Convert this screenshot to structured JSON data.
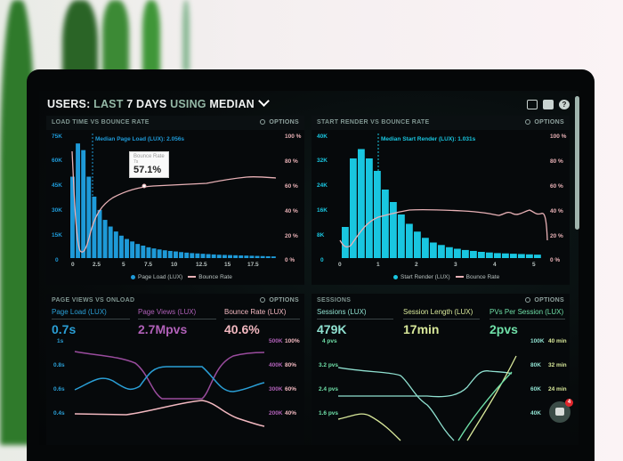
{
  "header": {
    "title_parts": [
      "USERS:",
      " LAST ",
      "7 DAYS",
      " USING ",
      "MEDIAN"
    ],
    "icons": [
      "monitor-icon",
      "share-icon",
      "help-icon"
    ]
  },
  "panels": {
    "load_time": {
      "title": "LOAD TIME VS BOUNCE RATE",
      "options_label": "OPTIONS",
      "median_label": "Median Page Load (LUX): 2.056s",
      "tooltip": {
        "title": "Bounce Rate",
        "sub": "7s",
        "value": "57.1%"
      },
      "legend": [
        "Page Load (LUX)",
        "Bounce Rate"
      ]
    },
    "start_render": {
      "title": "START RENDER VS BOUNCE RATE",
      "options_label": "OPTIONS",
      "median_label": "Median Start Render (LUX): 1.031s",
      "legend": [
        "Start Render (LUX)",
        "Bounce Rate"
      ]
    },
    "page_views": {
      "title": "PAGE VIEWS VS ONLOAD",
      "options_label": "OPTIONS",
      "stats": [
        {
          "label": "Page Load (LUX)",
          "value": "0.7s",
          "color": "#2a9fd6"
        },
        {
          "label": "Page Views (LUX)",
          "value": "2.7Mpvs",
          "color": "#b060b8"
        },
        {
          "label": "Bounce Rate (LUX)",
          "value": "40.6%",
          "color": "#f2b8c0"
        }
      ],
      "y_left": [
        "1s",
        "0.8s",
        "0.6s",
        "0.4s"
      ],
      "y_right_mid": [
        "500K",
        "400K",
        "300K",
        "200K"
      ],
      "y_right": [
        "100%",
        "80%",
        "60%",
        "40%"
      ]
    },
    "sessions": {
      "title": "SESSIONS",
      "options_label": "OPTIONS",
      "stats": [
        {
          "label": "Sessions (LUX)",
          "value": "479K",
          "color": "#8fe0d0"
        },
        {
          "label": "Session Length (LUX)",
          "value": "17min",
          "color": "#d8e89a"
        },
        {
          "label": "PVs Per Session (LUX)",
          "value": "2pvs",
          "color": "#6fe0a8"
        }
      ],
      "y_left": [
        "4 pvs",
        "3.2 pvs",
        "2.4 pvs",
        "1.6 pvs"
      ],
      "y_right_mid": [
        "100K",
        "80K",
        "60K",
        "40K"
      ],
      "y_right": [
        "40 min",
        "32 min",
        "24 min"
      ]
    }
  },
  "chat_widget": {
    "badge": "4"
  },
  "chart_data": [
    {
      "type": "bar",
      "title": "LOAD TIME VS BOUNCE RATE",
      "xlabel": "",
      "ylabel": "",
      "x_ticks": [
        "0",
        "2.5",
        "5",
        "7.5",
        "10",
        "12.5",
        "15",
        "17.5"
      ],
      "y_left_ticks": [
        "0",
        "15K",
        "30K",
        "45K",
        "60K",
        "75K"
      ],
      "y_right_ticks": [
        "0 %",
        "20 %",
        "40 %",
        "60 %",
        "80 %",
        "100 %"
      ],
      "ylim": [
        0,
        75000
      ],
      "series": [
        {
          "name": "Page Load (LUX)",
          "type": "bar",
          "color": "#1e9ad8",
          "values": [
            49000,
            69000,
            65000,
            49000,
            37000,
            29000,
            23000,
            19000,
            16000,
            13500,
            11500,
            10000,
            8500,
            7500,
            6500,
            5800,
            5200,
            4700,
            4300,
            4000,
            3600,
            3300,
            3000,
            2800,
            2600,
            2400,
            2200,
            2000,
            1900,
            1800,
            1700,
            1600,
            1500,
            1400,
            1300,
            1200,
            1100,
            1000
          ]
        },
        {
          "name": "Bounce Rate",
          "type": "line",
          "color": "#e8b1b6",
          "x": [
            0,
            0.5,
            1,
            2,
            3,
            5,
            7,
            9,
            10,
            12,
            14,
            15,
            16,
            17,
            18,
            19
          ],
          "values": [
            97,
            30,
            12,
            25,
            38,
            50,
            57,
            58,
            56,
            59,
            63,
            67,
            66,
            62,
            65,
            65
          ]
        }
      ],
      "annotations": [
        "Median Page Load (LUX): 2.056s",
        "Bounce Rate 7s 57.1%"
      ],
      "legend_position": "bottom"
    },
    {
      "type": "bar",
      "title": "START RENDER VS BOUNCE RATE",
      "x_ticks": [
        "0",
        "1",
        "2",
        "3",
        "4",
        "5"
      ],
      "y_left_ticks": [
        "0",
        "8K",
        "16K",
        "24K",
        "32K",
        "40K"
      ],
      "y_right_ticks": [
        "0 %",
        "20 %",
        "40 %",
        "60 %",
        "80 %",
        "100 %"
      ],
      "ylim": [
        0,
        40000
      ],
      "series": [
        {
          "name": "Start Render (LUX)",
          "type": "bar",
          "color": "#19c6e0",
          "values": [
            10000,
            32000,
            35000,
            32000,
            28000,
            22000,
            18000,
            14000,
            11000,
            8500,
            6500,
            5000,
            4200,
            3500,
            3000,
            2600,
            2300,
            2000,
            1800,
            1600,
            1500,
            1400,
            1300,
            1200,
            1100
          ]
        },
        {
          "name": "Bounce Rate",
          "type": "line",
          "color": "#e8b1b6",
          "x": [
            0,
            0.2,
            0.6,
            1,
            1.5,
            2,
            3,
            3.5,
            4,
            4.5,
            5,
            5.1
          ],
          "values": [
            18,
            14,
            24,
            33,
            37,
            40,
            38,
            35,
            38,
            37,
            36,
            10
          ]
        }
      ],
      "annotations": [
        "Median Start Render (LUX): 1.031s"
      ],
      "legend_position": "bottom"
    },
    {
      "type": "line",
      "title": "PAGE VIEWS VS ONLOAD",
      "y_left_ticks": [
        "0.4s",
        "0.6s",
        "0.8s",
        "1s"
      ],
      "y_right_ticks": [
        "200K 40%",
        "300K 60%",
        "400K 80%",
        "500K 100%"
      ],
      "series": [
        {
          "name": "Page Load (LUX)",
          "color": "#2a9fd6",
          "values": [
            0.6,
            0.7,
            0.6,
            0.8,
            0.8,
            0.6,
            0.7
          ]
        },
        {
          "name": "Page Views (LUX)",
          "color": "#b060b8",
          "values": [
            460000,
            430000,
            400000,
            260000,
            260000,
            430000,
            450000
          ]
        },
        {
          "name": "Bounce Rate (LUX)",
          "color": "#f2b8c0",
          "values": [
            40,
            40,
            42,
            48,
            52,
            42,
            36
          ]
        }
      ]
    },
    {
      "type": "line",
      "title": "SESSIONS",
      "y_left_ticks": [
        "1.6 pvs",
        "2.4 pvs",
        "3.2 pvs",
        "4 pvs"
      ],
      "y_right_ticks": [
        "40K",
        "60K",
        "80K",
        "100K",
        "24 min",
        "32 min",
        "40 min"
      ],
      "series": [
        {
          "name": "Sessions (LUX)",
          "color": "#8fe0d0",
          "values": [
            3.2,
            3.1,
            3.0,
            2.2,
            1.2,
            2.4,
            3.0
          ]
        },
        {
          "name": "Session Length (LUX)",
          "color": "#d8e89a",
          "values": [
            1.8,
            1.9,
            1.6,
            1.0,
            0.8,
            1.5,
            3.8
          ]
        },
        {
          "name": "PVs Per Session (LUX)",
          "color": "#6fe0a8",
          "values": [
            2.2,
            2.2,
            2.2,
            2.1,
            2.3,
            3.0,
            2.9
          ]
        }
      ]
    }
  ]
}
